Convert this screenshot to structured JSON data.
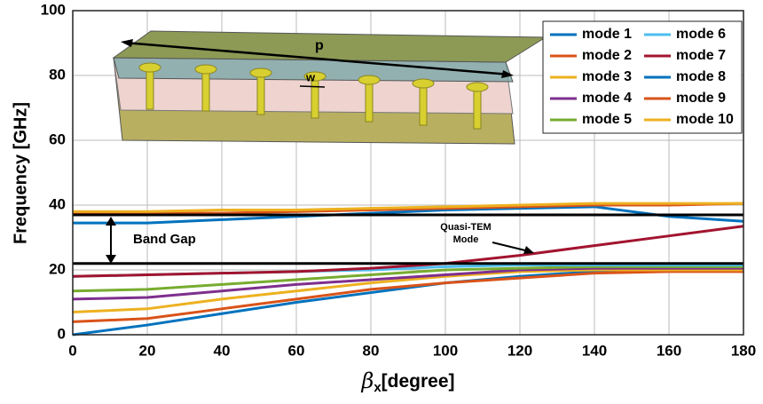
{
  "chart_data": {
    "type": "line",
    "ylabel": "Frequency [GHz]",
    "xlabel": [
      "β",
      "x",
      "[degree]"
    ],
    "x": [
      0,
      20,
      40,
      60,
      80,
      100,
      120,
      140,
      160,
      180
    ],
    "xlim": [
      0,
      180
    ],
    "xticks": [
      0,
      20,
      40,
      60,
      80,
      100,
      120,
      140,
      160,
      180
    ],
    "ylim": [
      0,
      100
    ],
    "yticks": [
      0,
      20,
      40,
      60,
      80,
      100
    ],
    "grid": true,
    "legend": "upper right",
    "series": [
      {
        "name": "mode 1",
        "color": "#0072bd",
        "values": [
          0,
          3,
          6.5,
          10,
          13,
          16,
          18,
          19.5,
          20,
          20
        ]
      },
      {
        "name": "mode 2",
        "color": "#d95319",
        "values": [
          4,
          5,
          8,
          11,
          14,
          16,
          17.5,
          19,
          19.5,
          19.5
        ]
      },
      {
        "name": "mode 3",
        "color": "#edb120",
        "values": [
          7,
          8,
          11,
          13.5,
          16,
          18,
          19.5,
          20,
          20,
          20
        ]
      },
      {
        "name": "mode 4",
        "color": "#7e2f8e",
        "values": [
          11,
          11.5,
          13.5,
          15.5,
          17,
          18.5,
          20,
          20.5,
          20.5,
          20.5
        ]
      },
      {
        "name": "mode 5",
        "color": "#77ac30",
        "values": [
          13.5,
          14,
          15.5,
          17,
          18.5,
          20,
          20.5,
          21,
          21,
          21
        ]
      },
      {
        "name": "mode 6",
        "color": "#4dbeee",
        "values": [
          18,
          18.5,
          19,
          19.5,
          20,
          21,
          21.5,
          21.5,
          21.5,
          21.5
        ]
      },
      {
        "name": "mode 7",
        "color": "#a2142f",
        "values": [
          18,
          18.5,
          19,
          19.5,
          20.5,
          22,
          24.5,
          27.5,
          30.5,
          33.5
        ]
      },
      {
        "name": "mode 8",
        "color": "#0072bd",
        "values": [
          34.5,
          34.5,
          35.5,
          36.5,
          37.5,
          38.5,
          39,
          39.5,
          36.5,
          35
        ]
      },
      {
        "name": "mode 9",
        "color": "#d95319",
        "values": [
          37.5,
          37.5,
          37.5,
          38,
          38.5,
          39,
          39.5,
          40,
          40,
          40.5
        ]
      },
      {
        "name": "mode 10",
        "color": "#edb120",
        "values": [
          38,
          38,
          38.5,
          38.5,
          39,
          39.5,
          40,
          40.5,
          40.5,
          40.5
        ]
      }
    ],
    "reference_lines": [
      22,
      37
    ],
    "annotations": [
      "Band Gap",
      "Quasi-TEM",
      "Mode"
    ],
    "inset_labels": [
      "p",
      "w"
    ]
  }
}
